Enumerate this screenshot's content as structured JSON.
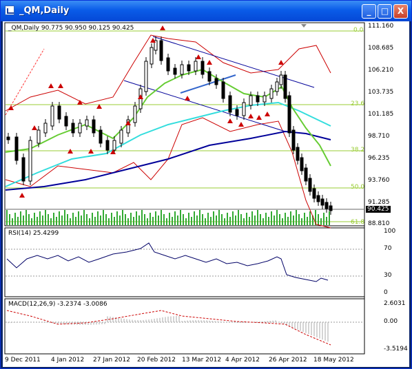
{
  "window": {
    "title": "_QM,Daily",
    "minimize_label": "_",
    "maximize_label": "□",
    "close_label": "X"
  },
  "main_chart": {
    "info": "_QM,Daily  90.775 90.950 90.125 90.425",
    "price_levels": [
      "111.160",
      "108.685",
      "106.210",
      "103.735",
      "101.185",
      "98.710",
      "96.235",
      "93.760",
      "91.285",
      "88.810"
    ],
    "current_price": "90.425",
    "fib_labels": [
      "0.0",
      "23.6",
      "38.2",
      "50.0",
      "61.8"
    ]
  },
  "rsi_pane": {
    "info": "RSI(14) 25.4299",
    "levels": [
      "100",
      "70",
      "30",
      "0"
    ]
  },
  "macd_pane": {
    "info": "MACD(12,26,9) -3.2374 -3.0086",
    "levels": [
      "2.6031",
      "0.00",
      "-3.5194"
    ]
  },
  "x_axis": {
    "dates": [
      "9 Dec 2011",
      "4 Jan 2012",
      "27 Jan 2012",
      "20 Feb 2012",
      "13 Mar 2012",
      "4 Apr 2012",
      "26 Apr 2012",
      "18 May 2012"
    ]
  },
  "colors": {
    "candles": "#000000",
    "bollinger": "#cc0000",
    "ma_fast": "#66cc33",
    "ma_mid": "#33dddd",
    "ma_slow": "#000099",
    "volume": "#33aa33",
    "fractal": "#cc0000",
    "fib": "#99cc33",
    "rsi": "#000066",
    "macd_hist": "#aaaaaa",
    "macd_signal": "#cc0000"
  }
}
